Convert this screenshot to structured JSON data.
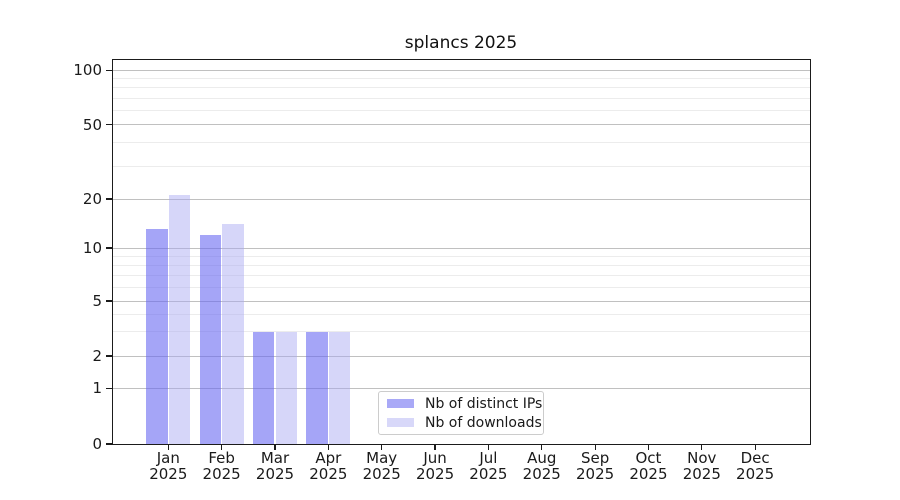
{
  "figure": {
    "background": "#ffffff"
  },
  "chart_data": {
    "type": "bar",
    "title": "splancs 2025",
    "xlabel": "",
    "ylabel": "",
    "yscale": "log-like",
    "ylim": [
      0,
      113
    ],
    "grid": true,
    "legend_position": "lower-center-inside",
    "y_tick_labels": [
      "0",
      "1",
      "2",
      "5",
      "10",
      "20",
      "50",
      "100"
    ],
    "x_tick_labels": [
      {
        "month": "Jan",
        "year": "2025"
      },
      {
        "month": "Feb",
        "year": "2025"
      },
      {
        "month": "Mar",
        "year": "2025"
      },
      {
        "month": "Apr",
        "year": "2025"
      },
      {
        "month": "May",
        "year": "2025"
      },
      {
        "month": "Jun",
        "year": "2025"
      },
      {
        "month": "Jul",
        "year": "2025"
      },
      {
        "month": "Aug",
        "year": "2025"
      },
      {
        "month": "Sep",
        "year": "2025"
      },
      {
        "month": "Oct",
        "year": "2025"
      },
      {
        "month": "Nov",
        "year": "2025"
      },
      {
        "month": "Dec",
        "year": "2025"
      }
    ],
    "series": [
      {
        "name": "Nb of distinct IPs",
        "color": "#a9a9f7",
        "values": [
          13,
          12,
          3,
          3,
          0,
          0,
          0,
          0,
          0,
          0,
          0,
          0
        ]
      },
      {
        "name": "Nb of downloads",
        "color": "#d8d8f9",
        "values": [
          21,
          14,
          3,
          3,
          0,
          0,
          0,
          0,
          0,
          0,
          0,
          0
        ]
      }
    ]
  }
}
